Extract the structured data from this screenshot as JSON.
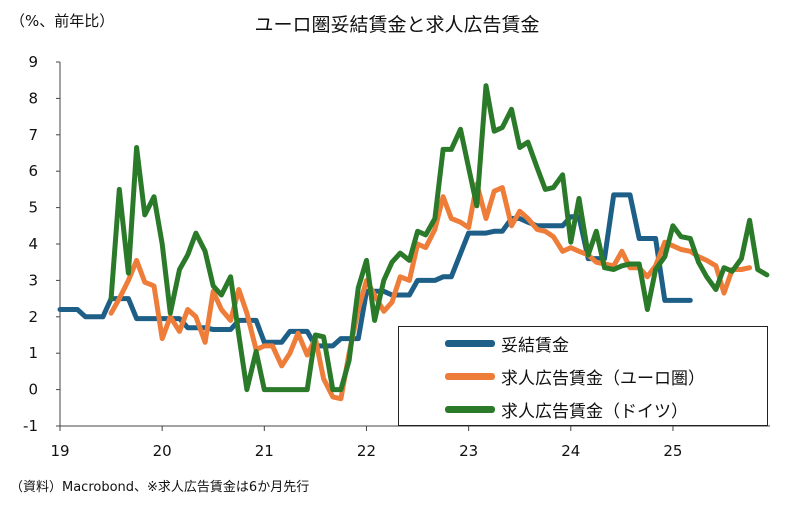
{
  "colors": {
    "wages": "#1d5f86",
    "ads_euro": "#ef7d3a",
    "ads_germany": "#2a7a2a",
    "axis": "#444444",
    "grid": "#cfcfcf"
  },
  "chart_data": {
    "type": "line",
    "title": "ユーロ圏妥結賃金と求人広告賃金",
    "ylabel": "（%、前年比）",
    "source": "（資料）Macrobond、※求人広告賃金は6か月先行",
    "xlim": [
      2019.0,
      2025.95
    ],
    "ylim": [
      -1,
      9
    ],
    "yticks": [
      -1,
      0,
      1,
      2,
      3,
      4,
      5,
      6,
      7,
      8,
      9
    ],
    "xticks": [
      {
        "value": 2019,
        "label": "19"
      },
      {
        "value": 2020,
        "label": "20"
      },
      {
        "value": 2021,
        "label": "21"
      },
      {
        "value": 2022,
        "label": "22"
      },
      {
        "value": 2023,
        "label": "23"
      },
      {
        "value": 2024,
        "label": "24"
      },
      {
        "value": 2025,
        "label": "25"
      }
    ],
    "legend": "bottom-right",
    "series": [
      {
        "name": "妥結賃金",
        "color_key": "wages",
        "x": [
          2019.0,
          2019.17,
          2019.25,
          2019.42,
          2019.5,
          2019.58,
          2019.67,
          2019.75,
          2020.0,
          2020.17,
          2020.25,
          2020.42,
          2020.5,
          2020.67,
          2020.75,
          2020.92,
          2021.0,
          2021.17,
          2021.25,
          2021.42,
          2021.5,
          2021.67,
          2021.75,
          2021.92,
          2022.0,
          2022.17,
          2022.25,
          2022.42,
          2022.5,
          2022.58,
          2022.67,
          2022.75,
          2022.83,
          2023.0,
          2023.08,
          2023.17,
          2023.25,
          2023.33,
          2023.42,
          2023.5,
          2023.58,
          2023.67,
          2023.75,
          2023.83,
          2023.92,
          2024.0,
          2024.08,
          2024.17,
          2024.25,
          2024.33,
          2024.42,
          2024.5,
          2024.58,
          2024.67,
          2024.75,
          2024.83,
          2024.92,
          2025.0,
          2025.08,
          2025.17
        ],
        "values": [
          2.2,
          2.2,
          2.0,
          2.0,
          2.5,
          2.5,
          2.5,
          1.95,
          1.95,
          1.95,
          1.7,
          1.7,
          1.65,
          1.65,
          1.9,
          1.9,
          1.3,
          1.3,
          1.6,
          1.6,
          1.2,
          1.2,
          1.4,
          1.4,
          2.7,
          2.7,
          2.6,
          2.6,
          3.0,
          3.0,
          3.0,
          3.1,
          3.1,
          4.3,
          4.3,
          4.3,
          4.35,
          4.35,
          4.7,
          4.7,
          4.6,
          4.5,
          4.5,
          4.5,
          4.5,
          4.75,
          4.75,
          3.6,
          3.6,
          3.6,
          5.35,
          5.35,
          5.35,
          4.15,
          4.15,
          4.15,
          2.45,
          2.45,
          2.45,
          2.45
        ]
      },
      {
        "name": "求人広告賃金（ユーロ圏）",
        "color_key": "ads_euro",
        "x": [
          2019.5,
          2019.58,
          2019.67,
          2019.75,
          2019.83,
          2019.92,
          2020.0,
          2020.08,
          2020.17,
          2020.25,
          2020.33,
          2020.42,
          2020.5,
          2020.58,
          2020.67,
          2020.75,
          2020.83,
          2020.92,
          2021.0,
          2021.08,
          2021.17,
          2021.25,
          2021.33,
          2021.42,
          2021.5,
          2021.58,
          2021.67,
          2021.75,
          2021.83,
          2021.92,
          2022.0,
          2022.08,
          2022.17,
          2022.25,
          2022.33,
          2022.42,
          2022.5,
          2022.58,
          2022.67,
          2022.75,
          2022.83,
          2022.92,
          2023.0,
          2023.08,
          2023.17,
          2023.25,
          2023.33,
          2023.42,
          2023.5,
          2023.58,
          2023.67,
          2023.75,
          2023.83,
          2023.92,
          2024.0,
          2024.08,
          2024.17,
          2024.25,
          2024.33,
          2024.42,
          2024.5,
          2024.58,
          2024.67,
          2024.75,
          2024.83,
          2024.92,
          2025.0,
          2025.08,
          2025.17,
          2025.25,
          2025.33,
          2025.42,
          2025.5,
          2025.58,
          2025.67,
          2025.75
        ],
        "values": [
          2.1,
          2.5,
          3.0,
          3.55,
          2.95,
          2.85,
          1.4,
          2.0,
          1.6,
          2.2,
          2.0,
          1.3,
          2.7,
          2.2,
          1.9,
          2.75,
          2.1,
          1.1,
          1.2,
          1.2,
          0.65,
          1.0,
          1.55,
          0.95,
          1.4,
          0.3,
          -0.2,
          -0.25,
          1.0,
          2.2,
          3.0,
          2.6,
          2.15,
          2.4,
          3.1,
          3.0,
          4.0,
          3.9,
          4.4,
          5.3,
          4.7,
          4.6,
          4.45,
          5.65,
          4.7,
          5.45,
          5.55,
          4.5,
          4.9,
          4.7,
          4.4,
          4.35,
          4.2,
          3.8,
          3.9,
          3.8,
          3.7,
          3.5,
          3.45,
          3.4,
          3.8,
          3.35,
          3.35,
          3.1,
          3.4,
          4.05,
          3.95,
          3.85,
          3.8,
          3.65,
          3.55,
          3.4,
          2.65,
          3.3,
          3.3,
          3.35
        ]
      },
      {
        "name": "求人広告賃金（ドイツ）",
        "color_key": "ads_germany",
        "x": [
          2019.5,
          2019.58,
          2019.67,
          2019.75,
          2019.83,
          2019.92,
          2020.0,
          2020.08,
          2020.17,
          2020.25,
          2020.33,
          2020.42,
          2020.5,
          2020.58,
          2020.67,
          2020.75,
          2020.83,
          2020.92,
          2021.0,
          2021.08,
          2021.17,
          2021.25,
          2021.33,
          2021.42,
          2021.5,
          2021.58,
          2021.67,
          2021.75,
          2021.83,
          2021.92,
          2022.0,
          2022.08,
          2022.17,
          2022.25,
          2022.33,
          2022.42,
          2022.5,
          2022.58,
          2022.67,
          2022.75,
          2022.83,
          2022.92,
          2023.0,
          2023.08,
          2023.17,
          2023.25,
          2023.33,
          2023.42,
          2023.5,
          2023.58,
          2023.67,
          2023.75,
          2023.83,
          2023.92,
          2024.0,
          2024.08,
          2024.17,
          2024.25,
          2024.33,
          2024.42,
          2024.5,
          2024.58,
          2024.67,
          2024.75,
          2024.83,
          2024.92,
          2025.0,
          2025.08,
          2025.17,
          2025.25,
          2025.33,
          2025.42,
          2025.5,
          2025.58,
          2025.67,
          2025.75,
          2025.83,
          2025.92
        ],
        "values": [
          2.5,
          5.5,
          3.2,
          6.65,
          4.8,
          5.3,
          4.0,
          2.1,
          3.3,
          3.7,
          4.3,
          3.8,
          2.85,
          2.6,
          3.1,
          1.5,
          0.0,
          1.05,
          0.0,
          0.0,
          0.0,
          0.0,
          0.0,
          0.0,
          1.5,
          1.45,
          0.0,
          0.0,
          0.8,
          2.8,
          3.55,
          1.9,
          3.0,
          3.5,
          3.75,
          3.55,
          4.35,
          4.25,
          4.7,
          6.6,
          6.6,
          7.15,
          6.1,
          5.05,
          8.35,
          7.1,
          7.2,
          7.7,
          6.65,
          6.8,
          6.1,
          5.5,
          5.55,
          5.9,
          4.05,
          5.25,
          3.7,
          4.35,
          3.35,
          3.3,
          3.4,
          3.45,
          3.45,
          2.2,
          3.3,
          3.65,
          4.5,
          4.2,
          4.15,
          3.5,
          3.1,
          2.75,
          3.35,
          3.25,
          3.6,
          4.65,
          3.3,
          3.15
        ]
      }
    ]
  }
}
